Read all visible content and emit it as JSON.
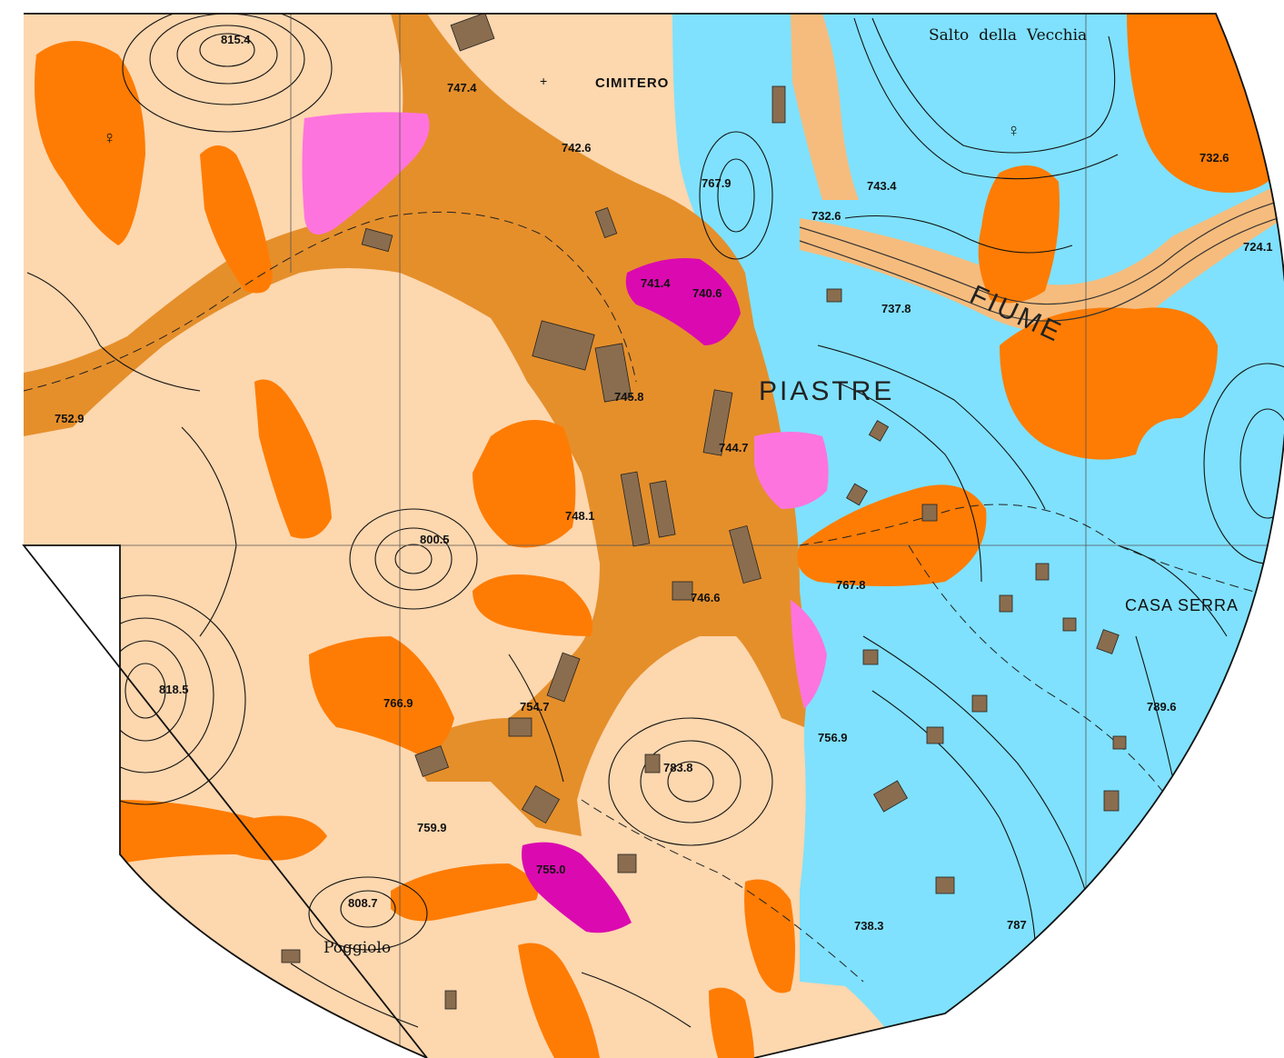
{
  "colors": {
    "background_light": "#fdd7ae",
    "slope_orange": "#fe7c04",
    "village_brown": "#e58f2b",
    "pink_light": "#fe74de",
    "magenta": "#db0ab0",
    "water_blue": "#7fe1fd",
    "pale_orange": "#f6bc7d",
    "line": "#111111"
  },
  "place_names": {
    "cimitero": "CIMITERO",
    "piastre": "PIASTRE",
    "fiume": "FIUME",
    "casa_serra": "CASA SERRA",
    "poggiolo": "Poggiolo",
    "salto_della_vecchia": "Salto  della  Vecchia"
  },
  "spot_heights": {
    "h815_4": "815.4",
    "h747_4": "747.4",
    "h742_6": "742.6",
    "h767_9": "767.9",
    "h743_4": "743.4",
    "h732_6_a": "732.6",
    "h732_6_b": "732.6",
    "h741_4": "741.4",
    "h740_6": "740.6",
    "h737_8": "737.8",
    "h724_1": "724.1",
    "h752_9": "752.9",
    "h745_8": "745.8",
    "h744_7": "744.7",
    "h748_1": "748.1",
    "h800_5": "800.5",
    "h767_8": "767.8",
    "h746_6": "746.6",
    "h818_5": "818.5",
    "h766_9": "766.9",
    "h754_7": "754.7",
    "h756_9": "756.9",
    "h789_6": "789.6",
    "h783_8": "783.8",
    "h759_9": "759.9",
    "h755_0": "755.0",
    "h808_7": "808.7",
    "h738_3": "738.3",
    "h787": "787"
  }
}
